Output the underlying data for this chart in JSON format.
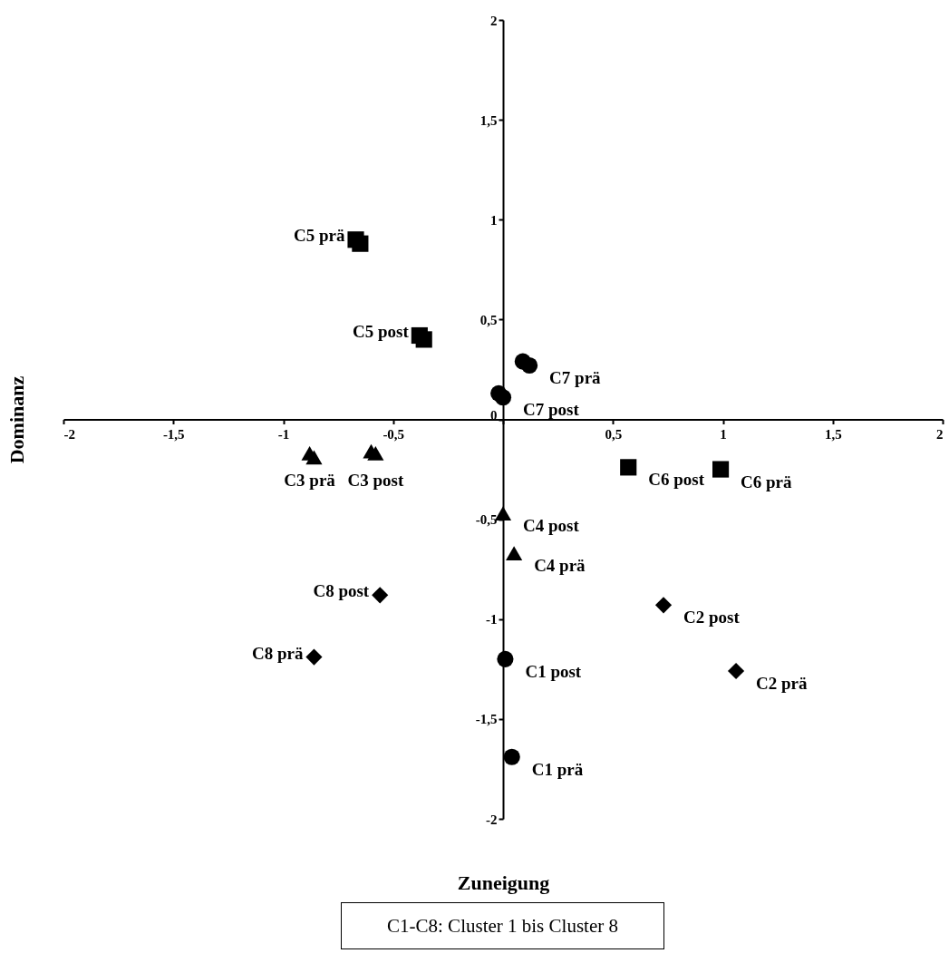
{
  "chart_data": {
    "type": "scatter",
    "xlabel": "Zuneigung",
    "ylabel": "Dominanz",
    "xlim": [
      -2,
      2
    ],
    "ylim": [
      -2,
      2
    ],
    "xticks": [
      {
        "value": -2,
        "label": "-2"
      },
      {
        "value": -1.5,
        "label": "-1,5"
      },
      {
        "value": -1,
        "label": "-1"
      },
      {
        "value": -0.5,
        "label": "-0,5"
      },
      {
        "value": 0,
        "label": null
      },
      {
        "value": 0.5,
        "label": "0,5"
      },
      {
        "value": 1,
        "label": "1"
      },
      {
        "value": 1.5,
        "label": "1,5"
      },
      {
        "value": 2,
        "label": "2"
      }
    ],
    "yticks": [
      {
        "value": -2,
        "label": "-2"
      },
      {
        "value": -1.5,
        "label": "-1,5"
      },
      {
        "value": -1,
        "label": "-1"
      },
      {
        "value": -0.5,
        "label": "-0,5"
      },
      {
        "value": 0,
        "label": "0"
      },
      {
        "value": 0.5,
        "label": "0,5"
      },
      {
        "value": 1,
        "label": "1"
      },
      {
        "value": 1.5,
        "label": "1,5"
      },
      {
        "value": 2,
        "label": "2"
      }
    ],
    "grid": false,
    "legend": false,
    "series": [
      {
        "color": "#000000",
        "marker": "circle",
        "x": [
          0.09,
          0.12,
          -0.02,
          0.0,
          0.01,
          0.04
        ],
        "values": [
          0.29,
          0.27,
          0.13,
          0.11,
          -1.2,
          -1.69
        ]
      },
      {
        "color": "#000000",
        "marker": "square",
        "x": [
          -0.67,
          -0.65,
          -0.38,
          -0.36,
          0.57,
          0.99
        ],
        "values": [
          0.9,
          0.88,
          0.42,
          0.4,
          -0.24,
          -0.25
        ]
      },
      {
        "color": "#000000",
        "marker": "triangle",
        "x": [
          -0.88,
          -0.86,
          -0.6,
          -0.58,
          0.0,
          0.05
        ],
        "values": [
          -0.17,
          -0.19,
          -0.16,
          -0.17,
          -0.47,
          -0.67
        ]
      },
      {
        "color": "#000000",
        "marker": "diamond",
        "x": [
          -0.56,
          -0.86,
          0.73,
          1.06
        ],
        "values": [
          -0.88,
          -1.19,
          -0.93,
          -1.26
        ]
      }
    ],
    "annotations": [
      {
        "text": "C5 prä",
        "x": -0.67,
        "y": 0.9
      },
      {
        "text": "C5 post",
        "x": -0.38,
        "y": 0.42
      },
      {
        "text": "C7 prä",
        "x": 0.12,
        "y": 0.27
      },
      {
        "text": "C7 post",
        "x": 0.0,
        "y": 0.11
      },
      {
        "text": "C3 prä",
        "x": -0.88,
        "y": -0.17
      },
      {
        "text": "C3 post",
        "x": -0.58,
        "y": -0.17
      },
      {
        "text": "C6 post",
        "x": 0.57,
        "y": -0.24
      },
      {
        "text": "C6 prä",
        "x": 0.99,
        "y": -0.25
      },
      {
        "text": "C4 post",
        "x": 0.0,
        "y": -0.47
      },
      {
        "text": "C4 prä",
        "x": 0.05,
        "y": -0.67
      },
      {
        "text": "C8 post",
        "x": -0.56,
        "y": -0.88
      },
      {
        "text": "C8 prä",
        "x": -0.86,
        "y": -1.19
      },
      {
        "text": "C2 post",
        "x": 0.73,
        "y": -0.93
      },
      {
        "text": "C2 prä",
        "x": 1.06,
        "y": -1.26
      },
      {
        "text": "C1 post",
        "x": 0.01,
        "y": -1.2
      },
      {
        "text": "C1 prä",
        "x": 0.04,
        "y": -1.69
      },
      "C1-C8: Cluster 1 bis Cluster 8"
    ]
  }
}
